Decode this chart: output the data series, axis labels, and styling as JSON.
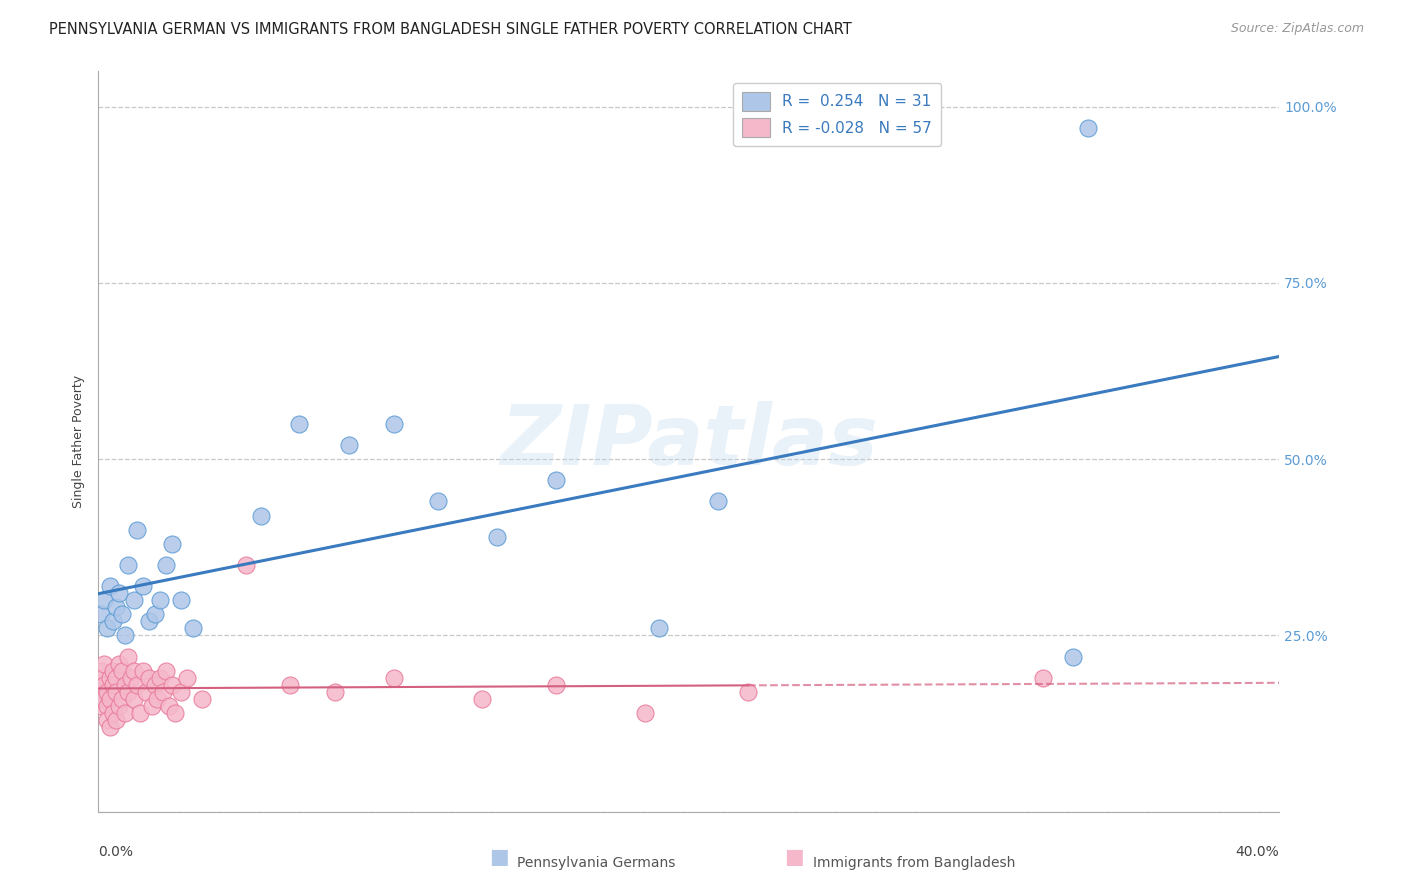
{
  "title": "PENNSYLVANIA GERMAN VS IMMIGRANTS FROM BANGLADESH SINGLE FATHER POVERTY CORRELATION CHART",
  "source": "Source: ZipAtlas.com",
  "ylabel": "Single Father Poverty",
  "xlim": [
    0.0,
    0.4
  ],
  "ylim": [
    0.0,
    1.05
  ],
  "bg_color": "#ffffff",
  "grid_color": "#c8c8c8",
  "watermark_text": "ZIPatlas",
  "series1_name": "Pennsylvania Germans",
  "series1_color": "#aec6e8",
  "series1_edge_color": "#5b9bd5",
  "series1_line_color": "#3a7abf",
  "series1_R": 0.254,
  "series1_N": 31,
  "series2_name": "Immigrants from Bangladesh",
  "series2_color": "#f5b8cb",
  "series2_edge_color": "#e8799a",
  "series2_line_color": "#d4607f",
  "series2_R": -0.028,
  "series2_N": 57,
  "pennsylvania_x": [
    0.001,
    0.002,
    0.003,
    0.004,
    0.005,
    0.006,
    0.007,
    0.008,
    0.009,
    0.01,
    0.012,
    0.013,
    0.015,
    0.017,
    0.019,
    0.021,
    0.023,
    0.025,
    0.028,
    0.032,
    0.055,
    0.068,
    0.085,
    0.1,
    0.115,
    0.135,
    0.155,
    0.19,
    0.21,
    0.33,
    0.335
  ],
  "pennsylvania_y": [
    0.28,
    0.3,
    0.26,
    0.32,
    0.27,
    0.29,
    0.31,
    0.28,
    0.25,
    0.35,
    0.3,
    0.4,
    0.32,
    0.27,
    0.28,
    0.3,
    0.35,
    0.38,
    0.3,
    0.26,
    0.42,
    0.55,
    0.52,
    0.55,
    0.44,
    0.39,
    0.47,
    0.26,
    0.44,
    0.22,
    0.97
  ],
  "bangladesh_x": [
    0.0003,
    0.0005,
    0.001,
    0.001,
    0.001,
    0.002,
    0.002,
    0.002,
    0.003,
    0.003,
    0.003,
    0.004,
    0.004,
    0.004,
    0.005,
    0.005,
    0.005,
    0.006,
    0.006,
    0.006,
    0.007,
    0.007,
    0.008,
    0.008,
    0.009,
    0.009,
    0.01,
    0.01,
    0.011,
    0.012,
    0.012,
    0.013,
    0.014,
    0.015,
    0.016,
    0.017,
    0.018,
    0.019,
    0.02,
    0.021,
    0.022,
    0.023,
    0.024,
    0.025,
    0.026,
    0.028,
    0.03,
    0.035,
    0.05,
    0.065,
    0.08,
    0.1,
    0.13,
    0.155,
    0.185,
    0.22,
    0.32
  ],
  "bangladesh_y": [
    0.18,
    0.17,
    0.19,
    0.2,
    0.15,
    0.18,
    0.16,
    0.21,
    0.15,
    0.17,
    0.13,
    0.19,
    0.16,
    0.12,
    0.2,
    0.18,
    0.14,
    0.19,
    0.17,
    0.13,
    0.21,
    0.15,
    0.2,
    0.16,
    0.18,
    0.14,
    0.22,
    0.17,
    0.19,
    0.2,
    0.16,
    0.18,
    0.14,
    0.2,
    0.17,
    0.19,
    0.15,
    0.18,
    0.16,
    0.19,
    0.17,
    0.2,
    0.15,
    0.18,
    0.14,
    0.17,
    0.19,
    0.16,
    0.35,
    0.18,
    0.17,
    0.19,
    0.16,
    0.18,
    0.14,
    0.17,
    0.19
  ],
  "title_fontsize": 10.5,
  "source_fontsize": 9,
  "legend_fontsize": 11,
  "axis_label_fontsize": 9,
  "tick_fontsize": 10
}
